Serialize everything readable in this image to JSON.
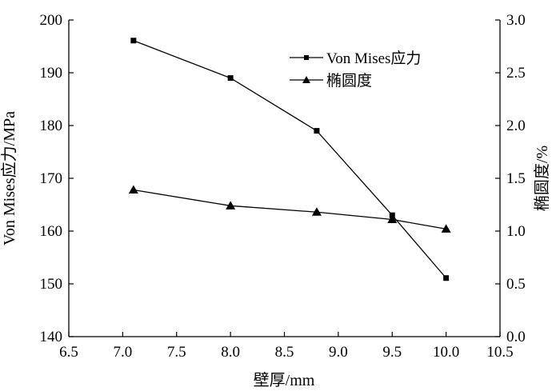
{
  "chart_data": {
    "type": "line",
    "x": [
      7.1,
      8.0,
      8.8,
      9.5,
      10.0
    ],
    "xlabel": "壁厚/mm",
    "ylabel": "Von Mises应力/MPa",
    "y2label": "椭圆度/%",
    "xlim": [
      6.5,
      10.5
    ],
    "ylim": [
      140,
      200
    ],
    "y2lim": [
      0.0,
      3.0
    ],
    "xticks": [
      "6.5",
      "7.0",
      "7.5",
      "8.0",
      "8.5",
      "9.0",
      "9.5",
      "10.0",
      "10.5"
    ],
    "yticks": [
      "140",
      "150",
      "160",
      "170",
      "180",
      "190",
      "200"
    ],
    "y2ticks": [
      "0.0",
      "0.5",
      "1.0",
      "1.5",
      "2.0",
      "2.5",
      "3.0"
    ],
    "grid": false,
    "legend_position": "top-right",
    "series": [
      {
        "name": "Von Mises应力",
        "axis": "left",
        "marker": "square",
        "values": [
          196.1,
          189.0,
          179.0,
          163.0,
          151.1
        ]
      },
      {
        "name": "椭圆度",
        "axis": "right",
        "marker": "triangle",
        "values": [
          1.39,
          1.24,
          1.18,
          1.11,
          1.02
        ]
      }
    ]
  },
  "colors": {
    "line": "#000000",
    "background": "#ffffff"
  }
}
